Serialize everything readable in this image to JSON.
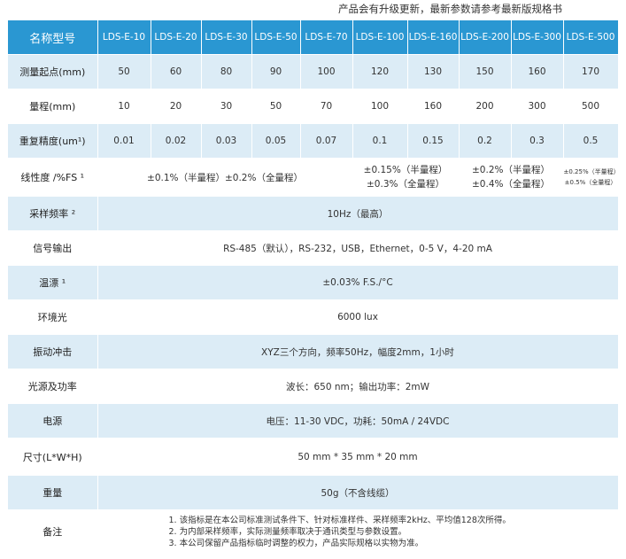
{
  "notice": "产品会有升级更新，最新参数请参考最新版规格书",
  "header": {
    "label": "名称型号",
    "models": [
      "LDS-E-10",
      "LDS-E-20",
      "LDS-E-30",
      "LDS-E-50",
      "LDS-E-70",
      "LDS-E-100",
      "LDS-E-160",
      "LDS-E-200",
      "LDS-E-300",
      "LDS-E-500"
    ]
  },
  "rows": {
    "start": {
      "label": "测量起点(mm)",
      "values": [
        "50",
        "60",
        "80",
        "90",
        "100",
        "120",
        "130",
        "150",
        "160",
        "170"
      ]
    },
    "range": {
      "label": "量程(mm)",
      "values": [
        "10",
        "20",
        "30",
        "50",
        "70",
        "100",
        "160",
        "200",
        "300",
        "500"
      ]
    },
    "repeat": {
      "label": "重复精度(um¹)",
      "values": [
        "0.01",
        "0.02",
        "0.03",
        "0.05",
        "0.07",
        "0.1",
        "0.15",
        "0.2",
        "0.3",
        "0.5"
      ]
    },
    "linearity": {
      "label": "线性度 /%FS ¹",
      "g1": "±0.1%（半量程）±0.2%（全量程）",
      "g2a": "±0.15%（半量程）",
      "g2b": "±0.3%（全量程）",
      "g3a": "±0.2%（半量程）",
      "g3b": "±0.4%（全量程）",
      "g4a": "±0.25%（半量程）",
      "g4b": "±0.5%（全量程）"
    },
    "sampling": {
      "label": "采样频率 ²",
      "value": "10Hz（最高）"
    },
    "output": {
      "label": "信号输出",
      "value": "RS-485（默认），RS-232，USB，Ethernet，0-5 V，4-20 mA"
    },
    "drift": {
      "label": "温漂 ¹",
      "value": "±0.03% F.S./°C"
    },
    "ambient": {
      "label": "环境光",
      "value": "6000 lux"
    },
    "vibration": {
      "label": "振动冲击",
      "value": "XYZ三个方向，频率50Hz，幅度2mm，1小时"
    },
    "light": {
      "label": "光源及功率",
      "value": "波长：650 nm；输出功率：2mW"
    },
    "power": {
      "label": "电源",
      "value": "电压：11-30 VDC，功耗：50mA / 24VDC"
    },
    "size": {
      "label": "尺寸(L*W*H)",
      "value": "50 mm * 35 mm * 20 mm"
    },
    "weight": {
      "label": "重量",
      "value": "50g（不含线缆）"
    },
    "remarks": {
      "label": "备注",
      "lines": [
        "1. 该指标是在本公司标准测试条件下、针对标准样件、采样频率2kHz、平均值128次所得。",
        "2. 为内部采样频率，实际测量频率取决于通讯类型与参数设置。",
        "3. 本公司保留产品指标临时调整的权力，产品实际规格以实物为准。"
      ]
    }
  }
}
